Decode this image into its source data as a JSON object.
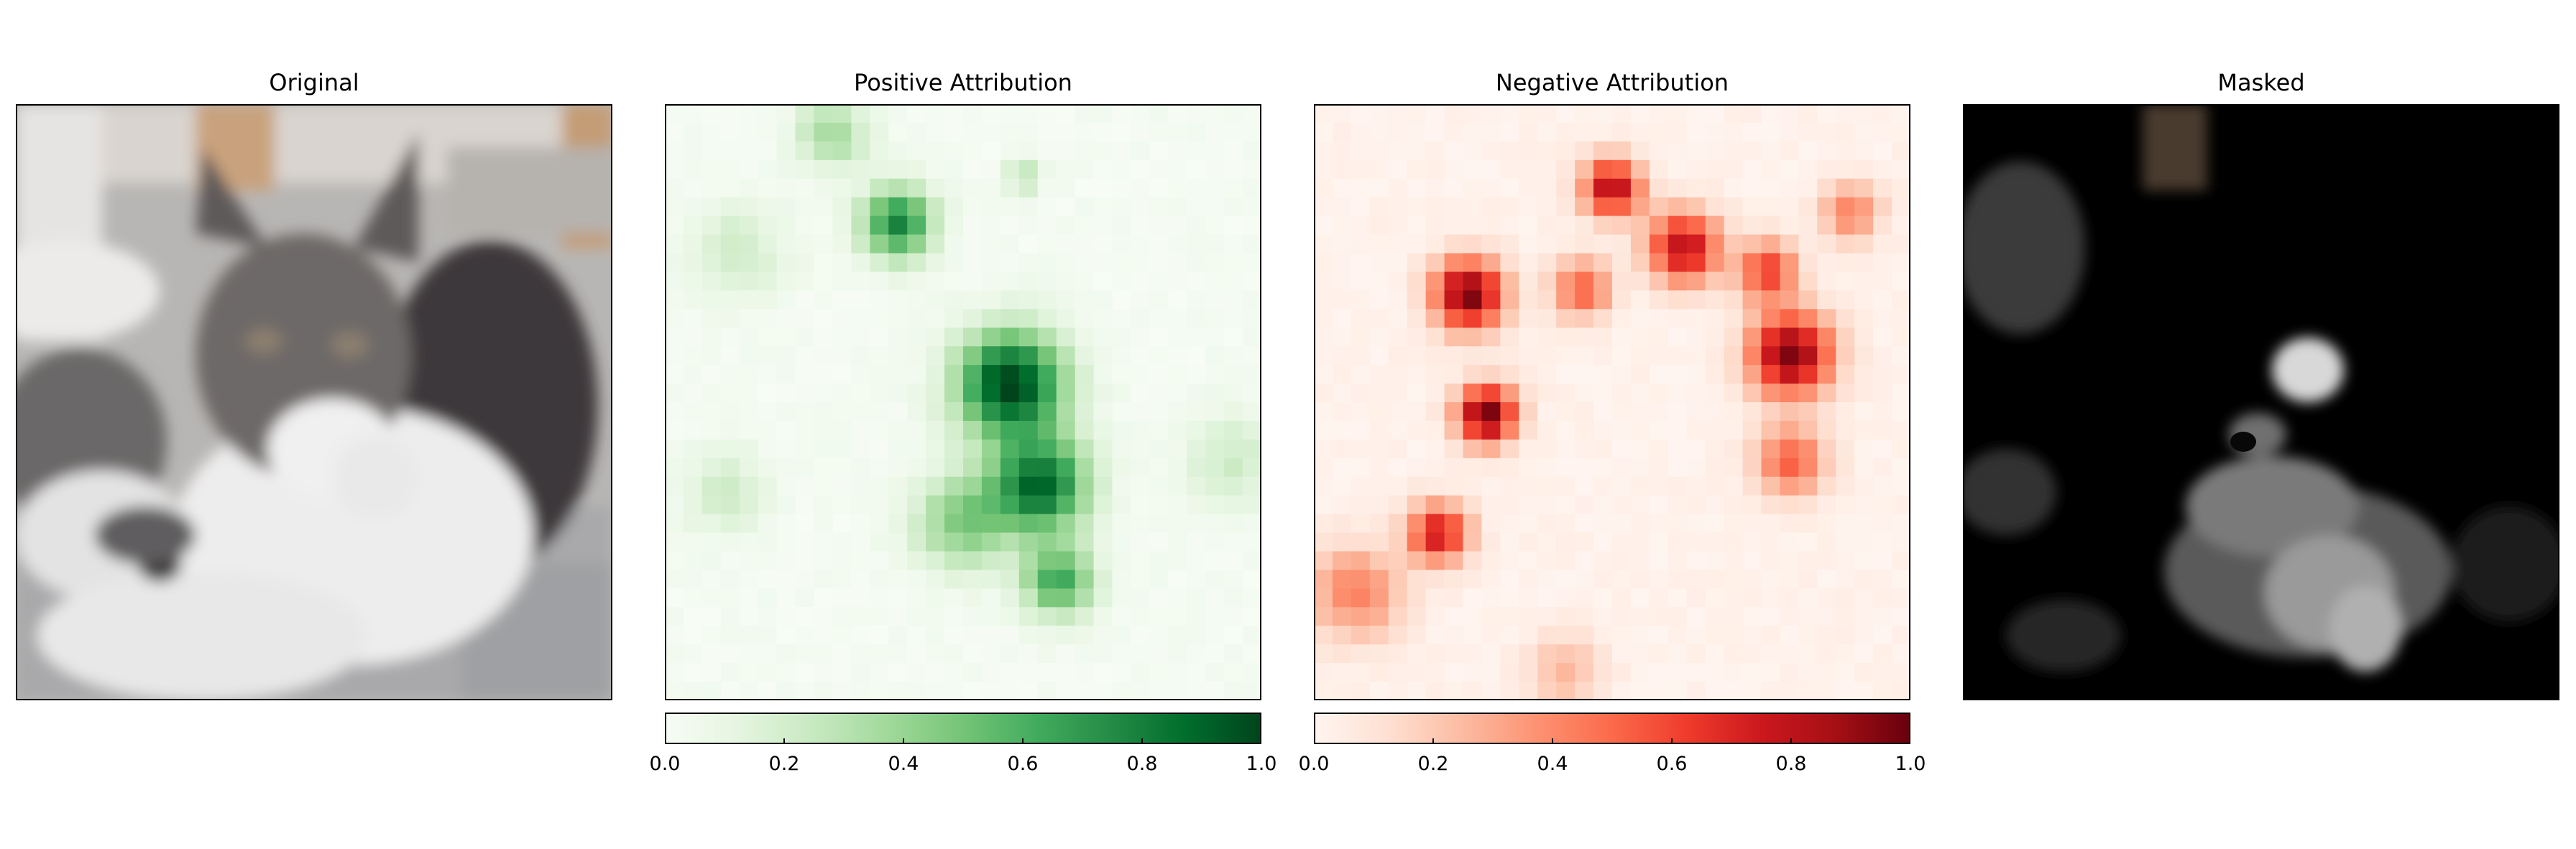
{
  "panels": [
    {
      "id": "original",
      "title": "Original"
    },
    {
      "id": "positive",
      "title": "Positive Attribution"
    },
    {
      "id": "negative",
      "title": "Negative Attribution"
    },
    {
      "id": "masked",
      "title": "Masked"
    }
  ],
  "chart_data": [
    {
      "type": "image",
      "title": "Original",
      "grid_rows": 32,
      "grid_cols": 32
    },
    {
      "type": "heatmap",
      "title": "Positive Attribution",
      "colormap": "Greens",
      "vmin": 0.0,
      "vmax": 1.0,
      "colorbar": {
        "ticks": [
          "0.0",
          "0.2",
          "0.4",
          "0.6",
          "0.8",
          "1.0"
        ],
        "orientation": "horizontal",
        "placement": "bottom"
      },
      "hotspots": [
        {
          "cx": 0.58,
          "cy": 0.47,
          "r": 0.09,
          "v": 1.0
        },
        {
          "cx": 0.63,
          "cy": 0.64,
          "r": 0.08,
          "v": 0.85
        },
        {
          "cx": 0.39,
          "cy": 0.2,
          "r": 0.06,
          "v": 0.75
        },
        {
          "cx": 0.66,
          "cy": 0.8,
          "r": 0.06,
          "v": 0.6
        },
        {
          "cx": 0.5,
          "cy": 0.7,
          "r": 0.08,
          "v": 0.45
        },
        {
          "cx": 0.28,
          "cy": 0.05,
          "r": 0.06,
          "v": 0.35
        },
        {
          "cx": 0.12,
          "cy": 0.25,
          "r": 0.08,
          "v": 0.2
        },
        {
          "cx": 0.1,
          "cy": 0.65,
          "r": 0.07,
          "v": 0.2
        },
        {
          "cx": 0.95,
          "cy": 0.6,
          "r": 0.08,
          "v": 0.2
        },
        {
          "cx": 0.6,
          "cy": 0.12,
          "r": 0.03,
          "v": 0.3
        }
      ]
    },
    {
      "type": "heatmap",
      "title": "Negative Attribution",
      "colormap": "Reds",
      "vmin": 0.0,
      "vmax": 1.0,
      "colorbar": {
        "ticks": [
          "0.0",
          "0.2",
          "0.4",
          "0.6",
          "0.8",
          "1.0"
        ],
        "orientation": "horizontal",
        "placement": "bottom"
      },
      "hotspots": [
        {
          "cx": 0.26,
          "cy": 0.32,
          "r": 0.06,
          "v": 0.95
        },
        {
          "cx": 0.29,
          "cy": 0.52,
          "r": 0.05,
          "v": 0.95
        },
        {
          "cx": 0.8,
          "cy": 0.42,
          "r": 0.07,
          "v": 0.95
        },
        {
          "cx": 0.62,
          "cy": 0.24,
          "r": 0.06,
          "v": 0.8
        },
        {
          "cx": 0.5,
          "cy": 0.14,
          "r": 0.05,
          "v": 0.8
        },
        {
          "cx": 0.21,
          "cy": 0.72,
          "r": 0.05,
          "v": 0.75
        },
        {
          "cx": 0.76,
          "cy": 0.28,
          "r": 0.05,
          "v": 0.6
        },
        {
          "cx": 0.8,
          "cy": 0.6,
          "r": 0.06,
          "v": 0.5
        },
        {
          "cx": 0.07,
          "cy": 0.82,
          "r": 0.08,
          "v": 0.4
        },
        {
          "cx": 0.45,
          "cy": 0.31,
          "r": 0.05,
          "v": 0.5
        },
        {
          "cx": 0.9,
          "cy": 0.18,
          "r": 0.05,
          "v": 0.4
        },
        {
          "cx": 0.42,
          "cy": 0.95,
          "r": 0.06,
          "v": 0.25
        }
      ]
    },
    {
      "type": "image",
      "title": "Masked",
      "grid_rows": 32,
      "grid_cols": 32
    }
  ],
  "colors": {
    "greens": [
      "#f7fcf5",
      "#e5f5e0",
      "#c7e9c0",
      "#a1d99b",
      "#74c476",
      "#41ab5d",
      "#238b45",
      "#006d2c",
      "#00441b"
    ],
    "reds": [
      "#fff5f0",
      "#fee0d2",
      "#fcbba1",
      "#fc9272",
      "#fb6a4a",
      "#ef3b2c",
      "#cb181d",
      "#a50f15",
      "#67000d"
    ]
  }
}
